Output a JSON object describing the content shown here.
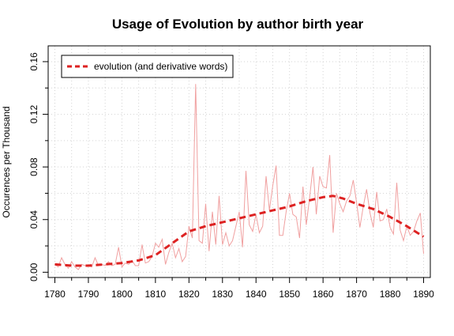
{
  "chart_data": {
    "type": "line",
    "title": "Usage of Evolution by author birth year",
    "xlabel": "",
    "ylabel": "Occurences per Thousand",
    "xlim": [
      1778,
      1892
    ],
    "ylim": [
      -0.004,
      0.172
    ],
    "x_ticks": [
      1780,
      1790,
      1800,
      1810,
      1820,
      1830,
      1840,
      1850,
      1860,
      1870,
      1880,
      1890
    ],
    "y_ticks": [
      0.0,
      0.04,
      0.08,
      0.12,
      0.16
    ],
    "x_tick_labels": [
      "1780",
      "1790",
      "1800",
      "1810",
      "1820",
      "1830",
      "1840",
      "1850",
      "1860",
      "1870",
      "1880",
      "1890"
    ],
    "y_tick_labels": [
      "0.00",
      "0.04",
      "0.08",
      "0.12",
      "0.16"
    ],
    "grid": true,
    "legend_position": "top-left",
    "colors": {
      "raw": "#f0a0a0",
      "smooth": "#dd2222",
      "grid": "#d3d3d3",
      "axis": "#000000"
    },
    "series": [
      {
        "name": "evolution (and derivative words)",
        "style": "dashed-smooth",
        "x": [
          1780,
          1785,
          1790,
          1795,
          1800,
          1805,
          1810,
          1815,
          1820,
          1825,
          1830,
          1835,
          1840,
          1845,
          1850,
          1855,
          1860,
          1863,
          1866,
          1870,
          1875,
          1880,
          1885,
          1890
        ],
        "values": [
          0.006,
          0.005,
          0.005,
          0.006,
          0.007,
          0.009,
          0.013,
          0.022,
          0.031,
          0.035,
          0.038,
          0.041,
          0.044,
          0.047,
          0.05,
          0.054,
          0.057,
          0.058,
          0.056,
          0.052,
          0.048,
          0.042,
          0.035,
          0.027
        ]
      },
      {
        "name": "",
        "style": "thin-raw",
        "x": [
          1780,
          1781,
          1782,
          1783,
          1784,
          1785,
          1786,
          1787,
          1788,
          1789,
          1790,
          1791,
          1792,
          1793,
          1794,
          1795,
          1796,
          1797,
          1798,
          1799,
          1800,
          1801,
          1802,
          1803,
          1804,
          1805,
          1806,
          1807,
          1808,
          1809,
          1810,
          1811,
          1812,
          1813,
          1814,
          1815,
          1816,
          1817,
          1818,
          1819,
          1820,
          1821,
          1822,
          1823,
          1824,
          1825,
          1826,
          1827,
          1828,
          1829,
          1830,
          1831,
          1832,
          1833,
          1834,
          1835,
          1836,
          1837,
          1838,
          1839,
          1840,
          1841,
          1842,
          1843,
          1844,
          1845,
          1846,
          1847,
          1848,
          1849,
          1850,
          1851,
          1852,
          1853,
          1854,
          1855,
          1856,
          1857,
          1858,
          1859,
          1860,
          1861,
          1862,
          1863,
          1864,
          1865,
          1866,
          1867,
          1868,
          1869,
          1870,
          1871,
          1872,
          1873,
          1874,
          1875,
          1876,
          1877,
          1878,
          1879,
          1880,
          1881,
          1882,
          1883,
          1884,
          1885,
          1886,
          1887,
          1888,
          1889,
          1890
        ],
        "values": [
          0.006,
          0.004,
          0.011,
          0.006,
          0.003,
          0.008,
          0.004,
          0.002,
          0.006,
          0.005,
          0.005,
          0.004,
          0.011,
          0.005,
          0.006,
          0.005,
          0.008,
          0.005,
          0.006,
          0.019,
          0.004,
          0.007,
          0.006,
          0.009,
          0.005,
          0.005,
          0.021,
          0.007,
          0.008,
          0.012,
          0.022,
          0.019,
          0.025,
          0.006,
          0.015,
          0.022,
          0.011,
          0.018,
          0.008,
          0.012,
          0.035,
          0.026,
          0.143,
          0.024,
          0.022,
          0.052,
          0.016,
          0.046,
          0.021,
          0.058,
          0.021,
          0.03,
          0.02,
          0.024,
          0.035,
          0.046,
          0.019,
          0.077,
          0.036,
          0.031,
          0.044,
          0.03,
          0.035,
          0.073,
          0.047,
          0.066,
          0.081,
          0.028,
          0.028,
          0.046,
          0.06,
          0.044,
          0.042,
          0.026,
          0.065,
          0.036,
          0.057,
          0.08,
          0.044,
          0.073,
          0.065,
          0.064,
          0.089,
          0.03,
          0.06,
          0.052,
          0.046,
          0.054,
          0.058,
          0.07,
          0.053,
          0.034,
          0.05,
          0.063,
          0.045,
          0.034,
          0.061,
          0.039,
          0.04,
          0.048,
          0.034,
          0.029,
          0.068,
          0.032,
          0.024,
          0.035,
          0.028,
          0.031,
          0.039,
          0.045,
          0.014
        ]
      }
    ]
  }
}
